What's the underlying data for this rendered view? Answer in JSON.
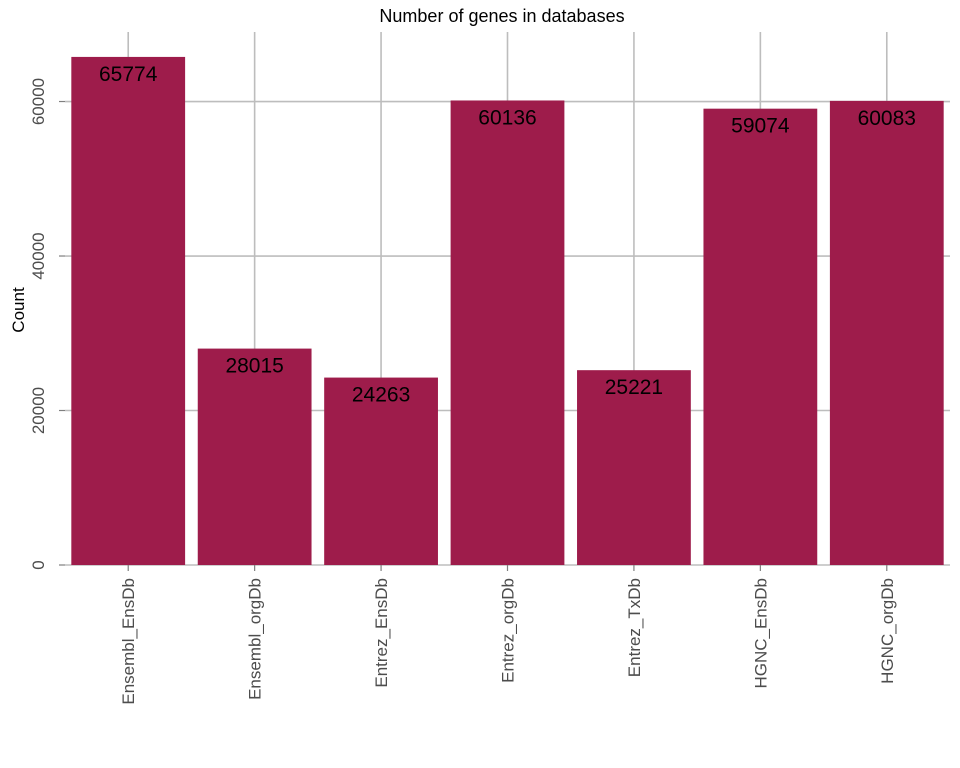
{
  "chart_data": {
    "type": "bar",
    "title": "Number of genes in databases",
    "xlabel": "",
    "ylabel": "Count",
    "categories": [
      "Ensembl_EnsDb",
      "Ensembl_orgDb",
      "Entrez_EnsDb",
      "Entrez_orgDb",
      "Entrez_TxDb",
      "HGNC_EnsDb",
      "HGNC_orgDb"
    ],
    "values": [
      65774,
      28015,
      24263,
      60136,
      25221,
      59074,
      60083
    ],
    "data_labels": [
      "65774",
      "28015",
      "24263",
      "60136",
      "25221",
      "59074",
      "60083"
    ],
    "yticks": [
      0,
      20000,
      40000,
      60000
    ],
    "ytick_labels": [
      "0",
      "20000",
      "40000",
      "60000"
    ],
    "ylim": [
      0,
      69000
    ],
    "grid": true,
    "legend": "none",
    "bar_color": "#9e1c4b",
    "grid_color": "#bdbdbd"
  }
}
